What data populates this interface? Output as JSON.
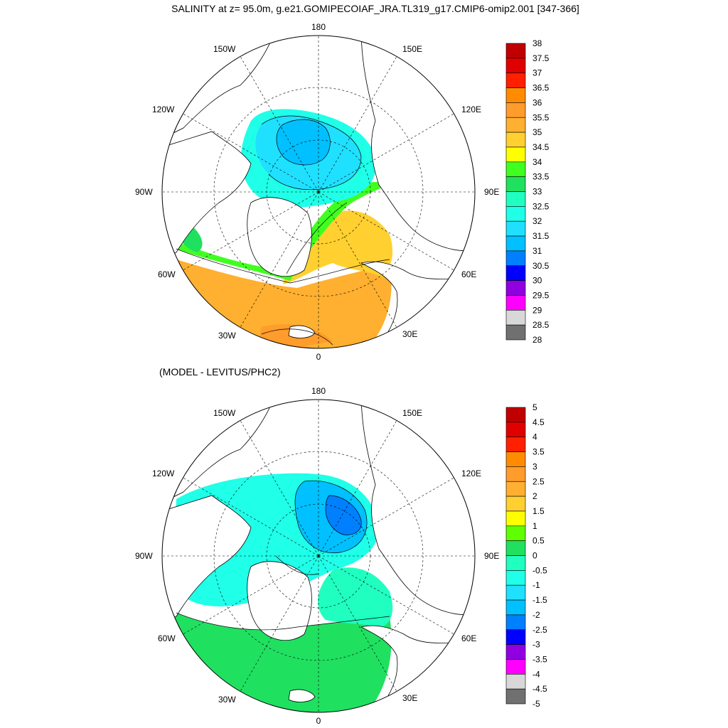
{
  "title": "SALINITY at z=  95.0m, g.e21.GOMIPECOIAF_JRA.TL319_g17.CMIP6-omip2.001 [347-366]",
  "subtitle": "(MODEL - LEVITUS/PHC2)",
  "longitude_labels": [
    "180",
    "150E",
    "120E",
    "90E",
    "60E",
    "30E",
    "0",
    "30W",
    "60W",
    "90W",
    "120W",
    "150W"
  ],
  "top_colorbar": {
    "labels": [
      "38",
      "37.5",
      "37",
      "36.5",
      "36",
      "35.5",
      "35",
      "34.5",
      "34",
      "33.5",
      "33",
      "32.5",
      "32",
      "31.5",
      "31",
      "30.5",
      "30",
      "29.5",
      "29",
      "28.5",
      "28"
    ],
    "colors": [
      "#c00000",
      "#e00000",
      "#ff2000",
      "#ff8c00",
      "#ff9c2c",
      "#ffb030",
      "#ffd030",
      "#ffff00",
      "#40ff20",
      "#20e060",
      "#20ffc0",
      "#20ffe8",
      "#20e0ff",
      "#00c0ff",
      "#0080ff",
      "#0000ff",
      "#9000e0",
      "#ff00ff",
      "#d8d8d8",
      "#707070"
    ]
  },
  "bottom_colorbar": {
    "labels": [
      "5",
      "4.5",
      "4",
      "3.5",
      "3",
      "2.5",
      "2",
      "1.5",
      "1",
      "0.5",
      "0",
      "-0.5",
      "-1",
      "-1.5",
      "-2",
      "-2.5",
      "-3",
      "-3.5",
      "-4",
      "-4.5",
      "-5"
    ],
    "colors": [
      "#c00000",
      "#e00000",
      "#ff2000",
      "#ff8c00",
      "#ff9c2c",
      "#ffb030",
      "#ffd030",
      "#ffff00",
      "#60ff00",
      "#20e060",
      "#20ffc0",
      "#20ffe8",
      "#20e0ff",
      "#00c0ff",
      "#0080ff",
      "#0000ff",
      "#9000e0",
      "#ff00ff",
      "#d8d8d8",
      "#707070"
    ]
  },
  "colors": {
    "land": "#ffffff",
    "coast": "#000000",
    "top_central_basin": "#20e0ff",
    "top_core": "#00c0ff",
    "top_atlantic": "#ffb030",
    "top_atlantic_deep": "#ff9c2c",
    "top_barents": "#ffd030",
    "bottom_basin": "#20ffe8",
    "bottom_core_outer": "#00c0ff",
    "bottom_core_inner": "#0080ff",
    "bottom_atlantic": "#20e060",
    "bottom_shelf": "#20ffc0"
  }
}
